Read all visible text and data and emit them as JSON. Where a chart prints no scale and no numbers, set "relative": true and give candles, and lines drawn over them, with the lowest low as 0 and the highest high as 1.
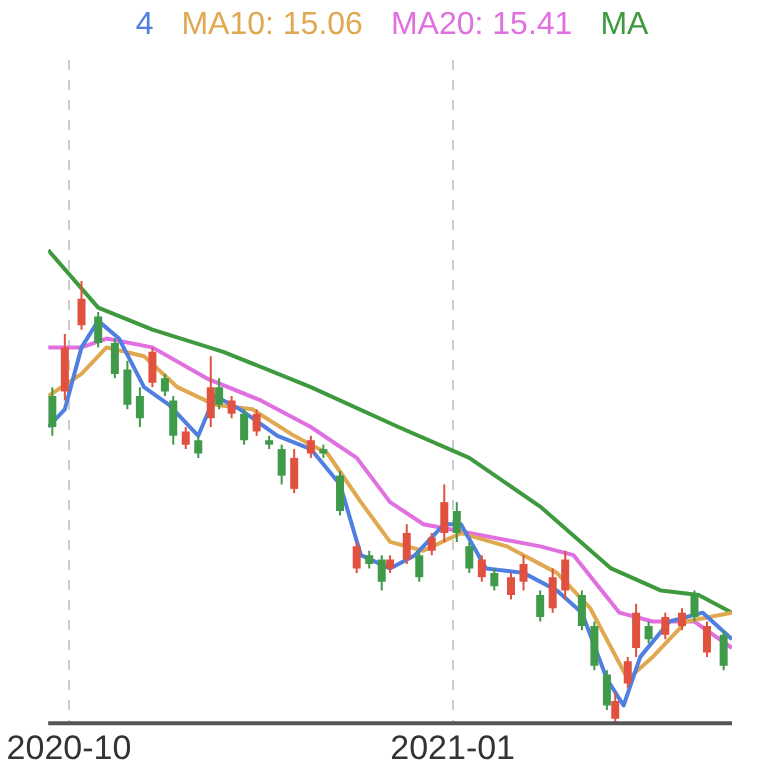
{
  "chart_data": {
    "type": "candlestick",
    "relative": true,
    "legend": "top",
    "grid": "x",
    "x": [
      "2020-09-27",
      "2020-09-30",
      "2020-10-04",
      "2020-10-08",
      "2020-10-12",
      "2020-10-15",
      "2020-10-18",
      "2020-10-21",
      "2020-10-24",
      "2020-10-26",
      "2020-10-29",
      "2020-11-01",
      "2020-11-04",
      "2020-11-06",
      "2020-11-09",
      "2020-11-12",
      "2020-11-15",
      "2020-11-18",
      "2020-11-21",
      "2020-11-24",
      "2020-11-28",
      "2020-12-01",
      "2020-12-05",
      "2020-12-09",
      "2020-12-12",
      "2020-12-15",
      "2020-12-17",
      "2020-12-21",
      "2020-12-24",
      "2020-12-27",
      "2020-12-30",
      "2021-01-02",
      "2021-01-05",
      "2021-01-08",
      "2021-01-11",
      "2021-01-15",
      "2021-01-18",
      "2021-01-22",
      "2021-01-25",
      "2021-01-28",
      "2021-02-01",
      "2021-02-04",
      "2021-02-07",
      "2021-02-09",
      "2021-02-12",
      "2021-02-14",
      "2021-02-17",
      "2021-02-21",
      "2021-02-25",
      "2021-02-28",
      "2021-03-03",
      "2021-03-07"
    ],
    "ohlc": [
      [
        0.74,
        0.76,
        0.65,
        0.67
      ],
      [
        0.75,
        0.88,
        0.73,
        0.85
      ],
      [
        0.9,
        1.0,
        0.89,
        0.96
      ],
      [
        0.92,
        0.93,
        0.85,
        0.86
      ],
      [
        0.86,
        0.87,
        0.78,
        0.79
      ],
      [
        0.8,
        0.82,
        0.71,
        0.72
      ],
      [
        0.74,
        0.76,
        0.67,
        0.69
      ],
      [
        0.77,
        0.85,
        0.76,
        0.84
      ],
      [
        0.78,
        0.79,
        0.74,
        0.75
      ],
      [
        0.73,
        0.74,
        0.63,
        0.65
      ],
      [
        0.63,
        0.67,
        0.62,
        0.66
      ],
      [
        0.64,
        0.65,
        0.6,
        0.61
      ],
      [
        0.69,
        0.83,
        0.67,
        0.76
      ],
      [
        0.76,
        0.78,
        0.71,
        0.72
      ],
      [
        0.7,
        0.74,
        0.69,
        0.73
      ],
      [
        0.7,
        0.71,
        0.63,
        0.64
      ],
      [
        0.66,
        0.71,
        0.65,
        0.7
      ],
      [
        0.64,
        0.65,
        0.62,
        0.63
      ],
      [
        0.62,
        0.63,
        0.54,
        0.56
      ],
      [
        0.53,
        0.62,
        0.52,
        0.6
      ],
      [
        0.61,
        0.65,
        0.6,
        0.64
      ],
      [
        0.62,
        0.63,
        0.6,
        0.61
      ],
      [
        0.56,
        0.57,
        0.47,
        0.48
      ],
      [
        0.35,
        0.41,
        0.34,
        0.4
      ],
      [
        0.38,
        0.39,
        0.35,
        0.36
      ],
      [
        0.37,
        0.38,
        0.3,
        0.32
      ],
      [
        0.35,
        0.38,
        0.34,
        0.37
      ],
      [
        0.37,
        0.45,
        0.36,
        0.43
      ],
      [
        0.38,
        0.39,
        0.32,
        0.33
      ],
      [
        0.39,
        0.43,
        0.38,
        0.42
      ],
      [
        0.43,
        0.54,
        0.41,
        0.5
      ],
      [
        0.48,
        0.5,
        0.41,
        0.43
      ],
      [
        0.4,
        0.41,
        0.34,
        0.35
      ],
      [
        0.33,
        0.38,
        0.32,
        0.37
      ],
      [
        0.34,
        0.35,
        0.3,
        0.31
      ],
      [
        0.29,
        0.34,
        0.28,
        0.33
      ],
      [
        0.32,
        0.38,
        0.3,
        0.36
      ],
      [
        0.29,
        0.3,
        0.23,
        0.24
      ],
      [
        0.26,
        0.35,
        0.25,
        0.33
      ],
      [
        0.3,
        0.39,
        0.28,
        0.37
      ],
      [
        0.29,
        0.3,
        0.21,
        0.22
      ],
      [
        0.22,
        0.23,
        0.12,
        0.13
      ],
      [
        0.11,
        0.12,
        0.03,
        0.04
      ],
      [
        0.01,
        0.07,
        0,
        0.05
      ],
      [
        0.09,
        0.15,
        0.08,
        0.14
      ],
      [
        0.17,
        0.27,
        0.15,
        0.25
      ],
      [
        0.22,
        0.23,
        0.18,
        0.19
      ],
      [
        0.2,
        0.25,
        0.19,
        0.24
      ],
      [
        0.22,
        0.26,
        0.21,
        0.25
      ],
      [
        0.29,
        0.3,
        0.23,
        0.24
      ],
      [
        0.16,
        0.23,
        0.15,
        0.22
      ],
      [
        0.2,
        0.21,
        0.12,
        0.13
      ]
    ],
    "colors": [
      "#3f9a4a",
      "#e0513f",
      "#e0513f",
      "#3f9a4a",
      "#3f9a4a",
      "#3f9a4a",
      "#3f9a4a",
      "#e0513f",
      "#3f9a4a",
      "#3f9a4a",
      "#e0513f",
      "#3f9a4a",
      "#e0513f",
      "#3f9a4a",
      "#e0513f",
      "#3f9a4a",
      "#e0513f",
      "#3f9a4a",
      "#3f9a4a",
      "#e0513f",
      "#e0513f",
      "#3f9a4a",
      "#3f9a4a",
      "#e0513f",
      "#3f9a4a",
      "#3f9a4a",
      "#e0513f",
      "#e0513f",
      "#3f9a4a",
      "#e0513f",
      "#e0513f",
      "#3f9a4a",
      "#3f9a4a",
      "#e0513f",
      "#3f9a4a",
      "#e0513f",
      "#e0513f",
      "#3f9a4a",
      "#e0513f",
      "#e0513f",
      "#3f9a4a",
      "#3f9a4a",
      "#3f9a4a",
      "#e0513f",
      "#e0513f",
      "#e0513f",
      "#3f9a4a",
      "#e0513f",
      "#e0513f",
      "#3f9a4a",
      "#e0513f",
      "#3f9a4a"
    ],
    "xlim": [
      "2020-09-26",
      "2021-03-09"
    ],
    "xticks": [
      "2020-10",
      "2021-01"
    ],
    "series": [
      {
        "type": "line",
        "name": "4",
        "color": "#4f7fe0",
        "x": [
          "2020-09-26",
          "2020-09-30",
          "2020-10-04",
          "2020-10-08",
          "2020-10-13",
          "2020-10-19",
          "2020-10-25",
          "2020-11-01",
          "2020-11-05",
          "2020-11-11",
          "2020-11-20",
          "2020-11-28",
          "2020-12-05",
          "2020-12-10",
          "2020-12-17",
          "2020-12-23",
          "2020-12-30",
          "2021-01-03",
          "2021-01-09",
          "2021-01-18",
          "2021-01-26",
          "2021-02-01",
          "2021-02-07",
          "2021-02-11",
          "2021-02-15",
          "2021-02-22",
          "2021-03-02",
          "2021-03-09"
        ],
        "values": [
          0.67,
          0.71,
          0.85,
          0.91,
          0.87,
          0.76,
          0.72,
          0.65,
          0.74,
          0.71,
          0.65,
          0.62,
          0.54,
          0.38,
          0.35,
          0.38,
          0.45,
          0.45,
          0.35,
          0.34,
          0.3,
          0.25,
          0.1,
          0.04,
          0.15,
          0.23,
          0.25,
          0.19
        ]
      },
      {
        "type": "line",
        "name": "MA10: 15.06",
        "color": "#e0a850",
        "x": [
          "2020-09-26",
          "2020-10-04",
          "2020-10-10",
          "2020-10-19",
          "2020-10-27",
          "2020-11-05",
          "2020-11-14",
          "2020-11-24",
          "2020-12-02",
          "2020-12-10",
          "2020-12-17",
          "2020-12-25",
          "2021-01-03",
          "2021-01-14",
          "2021-01-26",
          "2021-02-03",
          "2021-02-12",
          "2021-02-18",
          "2021-02-26",
          "2021-03-09"
        ],
        "values": [
          0.74,
          0.79,
          0.85,
          0.83,
          0.76,
          0.72,
          0.71,
          0.65,
          0.61,
          0.5,
          0.41,
          0.39,
          0.43,
          0.4,
          0.34,
          0.26,
          0.1,
          0.15,
          0.23,
          0.25
        ]
      },
      {
        "type": "line",
        "name": "MA20: 15.41",
        "color": "#e070e0",
        "x": [
          "2020-09-26",
          "2020-10-04",
          "2020-10-10",
          "2020-10-21",
          "2020-11-03",
          "2020-11-16",
          "2020-11-28",
          "2020-12-09",
          "2020-12-17",
          "2020-12-25",
          "2021-01-05",
          "2021-01-22",
          "2021-01-30",
          "2021-02-10",
          "2021-02-18",
          "2021-02-28",
          "2021-03-09"
        ],
        "values": [
          0.85,
          0.85,
          0.87,
          0.85,
          0.78,
          0.73,
          0.67,
          0.6,
          0.5,
          0.45,
          0.43,
          0.4,
          0.38,
          0.25,
          0.23,
          0.23,
          0.17
        ]
      },
      {
        "type": "line",
        "name": "MA",
        "color": "#3f9a3f",
        "x": [
          "2020-09-26",
          "2020-10-08",
          "2020-10-21",
          "2020-11-07",
          "2020-11-28",
          "2020-12-19",
          "2021-01-05",
          "2021-01-22",
          "2021-02-08",
          "2021-02-20",
          "2021-03-01",
          "2021-03-09"
        ],
        "values": [
          1.07,
          0.94,
          0.89,
          0.84,
          0.76,
          0.67,
          0.6,
          0.49,
          0.35,
          0.3,
          0.29,
          0.25
        ]
      }
    ]
  }
}
